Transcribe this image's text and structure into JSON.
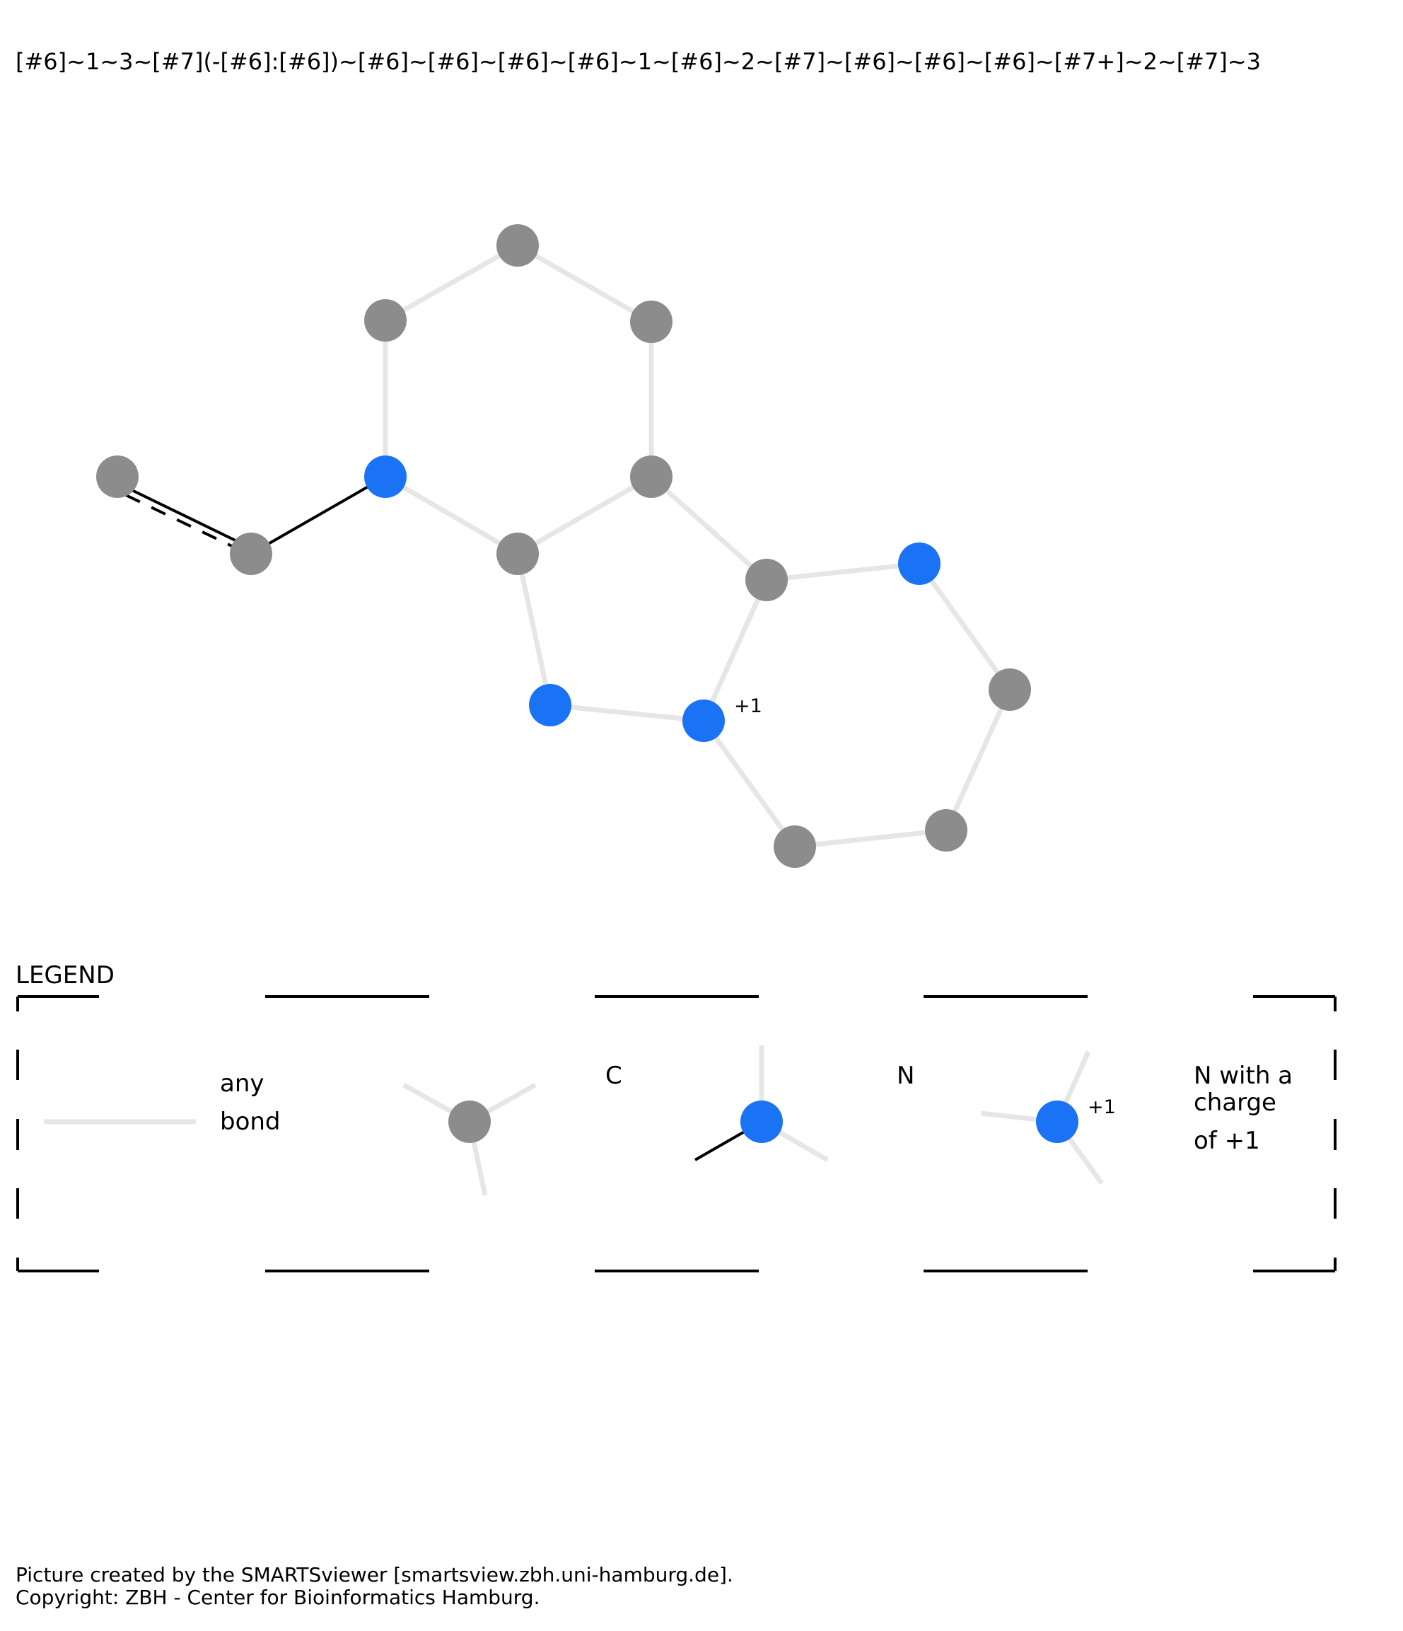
{
  "smarts": "[#6]~1~3~[#7](-[#6]:[#6])~[#6]~[#6]~[#6]~[#6]~1~[#6]~2~[#7]~[#6]~[#6]~[#6]~[#7+]~2~[#7]~3",
  "colors": {
    "carbon": "#8c8c8c",
    "nitrogen": "#1a73f5",
    "any_bond": "#e6e6e6",
    "single_bond": "#000000"
  },
  "molecule": {
    "charge_label": "+1"
  },
  "legend": {
    "title": "LEGEND",
    "any_bond_line1": "any",
    "any_bond_line2": "bond",
    "carbon_label": "C",
    "nitrogen_label": "N",
    "charged_n_line1": "N with a",
    "charged_n_line2": "charge",
    "charged_n_line3": "of +1",
    "charge_label": "+1"
  },
  "footer": {
    "line1": "Picture created by the SMARTSviewer [smartsview.zbh.uni-hamburg.de].",
    "line2": "Copyright: ZBH - Center for Bioinformatics Hamburg."
  }
}
